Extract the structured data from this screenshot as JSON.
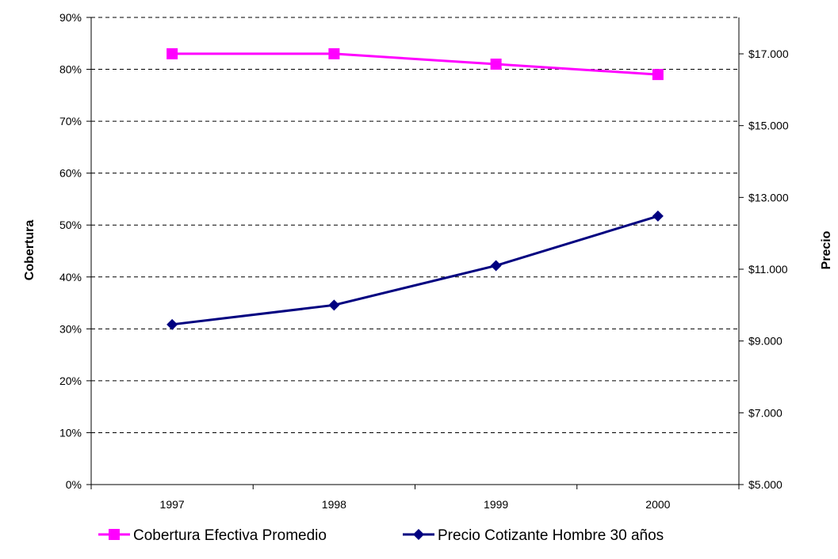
{
  "chart_data": {
    "type": "line",
    "categories": [
      "1997",
      "1998",
      "1999",
      "2000"
    ],
    "y_left": {
      "label": "Cobertura",
      "range": [
        0,
        90
      ],
      "ticks": [
        "0%",
        "10%",
        "20%",
        "30%",
        "40%",
        "50%",
        "60%",
        "70%",
        "80%",
        "90%"
      ]
    },
    "y_right": {
      "label": "Precio",
      "range": [
        5000,
        17000
      ],
      "ticks": [
        "$5.000",
        "$7.000",
        "$9.000",
        "$11.000",
        "$13.000",
        "$15.000",
        "$17.000"
      ]
    },
    "grid": "horizontal-dashed",
    "legend_position": "bottom",
    "series": [
      {
        "name": "Cobertura Efectiva Promedio",
        "axis": "left",
        "unit": "%",
        "color": "#FF00FF",
        "marker": "square",
        "values": [
          83,
          83,
          81,
          79
        ]
      },
      {
        "name": "Precio Cotizante Hombre 30 años",
        "axis": "right",
        "unit": "$",
        "color": "#000080",
        "marker": "diamond",
        "values": [
          9460,
          10000,
          11100,
          12480
        ]
      }
    ]
  }
}
